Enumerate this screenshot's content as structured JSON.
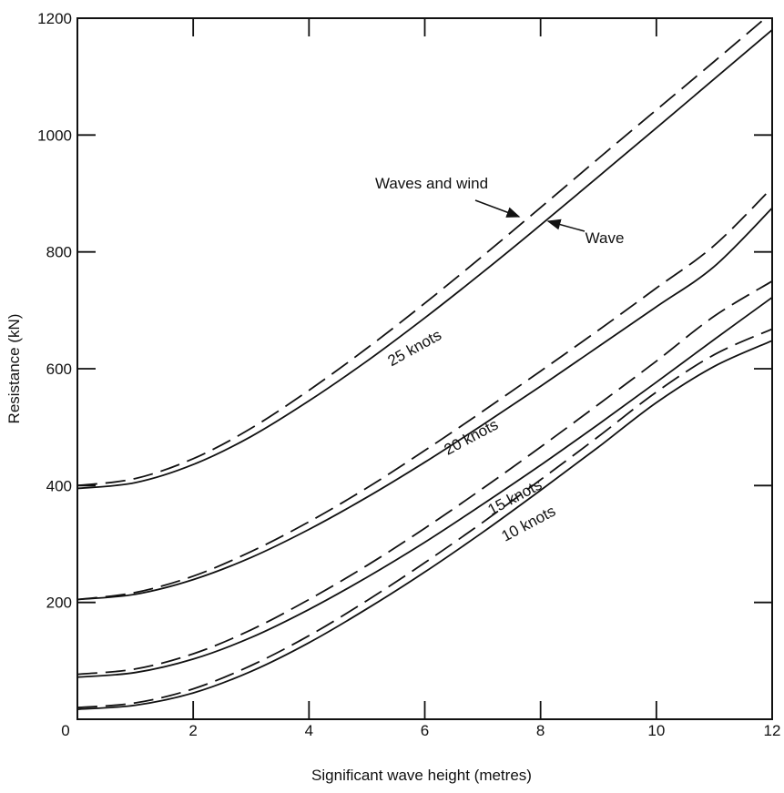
{
  "chart_data": {
    "type": "line",
    "title": "",
    "xlabel": "Significant wave height (metres)",
    "ylabel": "Resistance (kN)",
    "xlim": [
      0,
      12
    ],
    "ylim": [
      0,
      1200
    ],
    "x_ticks": [
      0,
      2,
      4,
      6,
      8,
      10,
      12
    ],
    "y_ticks": [
      200,
      400,
      600,
      800,
      1000,
      1200
    ],
    "origin_label": "0",
    "grid": false,
    "x": [
      0,
      1,
      2,
      3,
      4,
      5,
      6,
      7,
      8,
      9,
      10,
      11,
      12
    ],
    "series": [
      {
        "name": "25 knots",
        "component": "Wave",
        "style": "solid",
        "values": [
          395,
          405,
          436,
          484,
          545,
          613,
          687,
          765,
          846,
          929,
          1012,
          1096,
          1180
        ]
      },
      {
        "name": "25 knots",
        "component": "Waves and wind",
        "style": "dashed",
        "values": [
          400,
          412,
          446,
          498,
          563,
          635,
          712,
          793,
          876,
          960,
          1043,
          1126,
          1210
        ]
      },
      {
        "name": "20 knots",
        "component": "Wave",
        "style": "solid",
        "values": [
          205,
          214,
          239,
          277,
          325,
          380,
          440,
          504,
          570,
          638,
          706,
          775,
          875
        ]
      },
      {
        "name": "20 knots",
        "component": "Waves and wind",
        "style": "dashed",
        "values": [
          205,
          217,
          245,
          287,
          338,
          396,
          460,
          527,
          596,
          666,
          738,
          811,
          910
        ]
      },
      {
        "name": "15 knots",
        "component": "Wave",
        "style": "solid",
        "values": [
          72,
          80,
          103,
          140,
          188,
          243,
          303,
          368,
          435,
          505,
          577,
          650,
          722
        ]
      },
      {
        "name": "15 knots",
        "component": "Waves and wind",
        "style": "dashed",
        "values": [
          77,
          86,
          112,
          153,
          205,
          263,
          327,
          395,
          466,
          539,
          613,
          690,
          750
        ]
      },
      {
        "name": "10 knots",
        "component": "Wave",
        "style": "solid",
        "values": [
          17,
          24,
          45,
          82,
          131,
          189,
          252,
          320,
          392,
          466,
          542,
          604,
          648
        ]
      },
      {
        "name": "10 knots",
        "component": "Waves and wind",
        "style": "dashed",
        "values": [
          20,
          28,
          52,
          92,
          143,
          203,
          268,
          337,
          410,
          484,
          560,
          624,
          668
        ]
      }
    ],
    "annotations": [
      {
        "text": "Waves and wind",
        "points_to": "dashed 25 knots curve"
      },
      {
        "text": "Wave",
        "points_to": "solid 25 knots curve"
      },
      {
        "text": "25 knots"
      },
      {
        "text": "20 knots"
      },
      {
        "text": "15 knots"
      },
      {
        "text": "10 knots"
      }
    ]
  }
}
